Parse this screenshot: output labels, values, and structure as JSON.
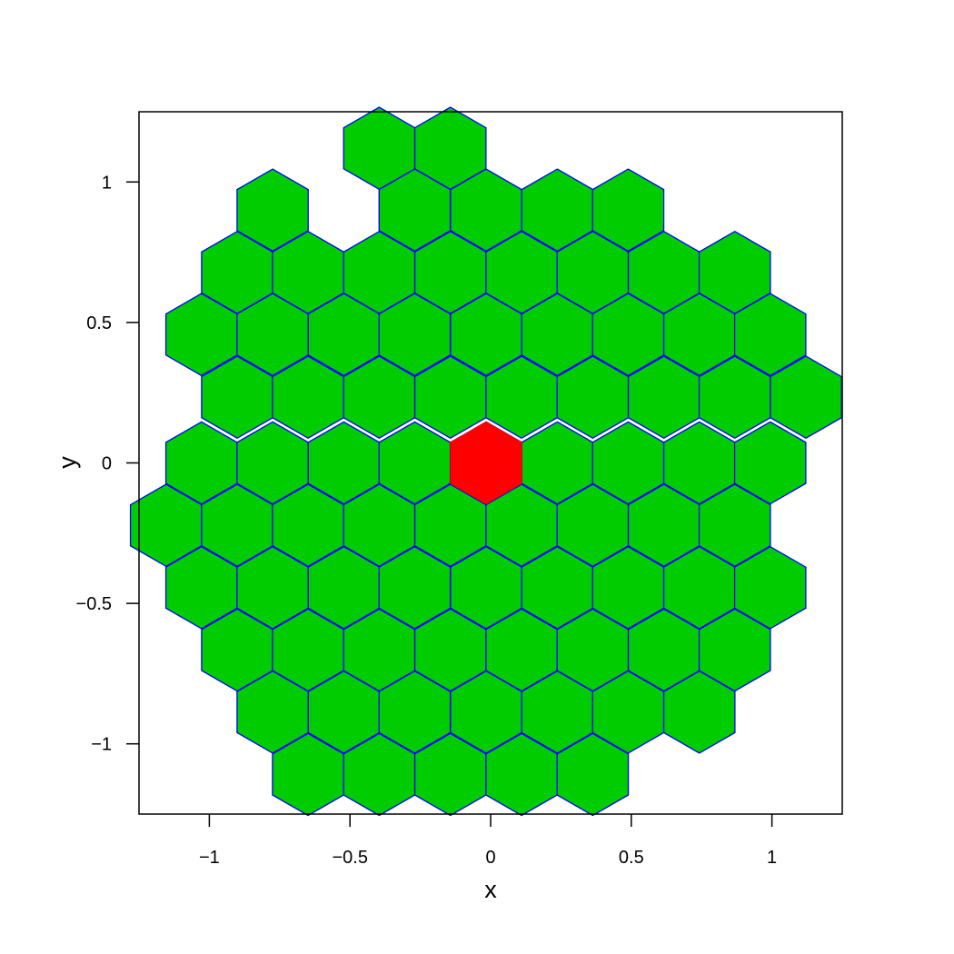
{
  "chart_data": {
    "type": "scatter",
    "title": "",
    "xlabel": "x",
    "ylabel": "y",
    "xlim": [
      -1.25,
      1.25
    ],
    "ylim": [
      -1.25,
      1.25
    ],
    "x_ticks": [
      -1,
      -0.5,
      0,
      0.5,
      1
    ],
    "x_tick_labels": [
      "−1",
      "−0.5",
      "0",
      "0.5",
      "1"
    ],
    "y_ticks": [
      -1,
      -0.5,
      0,
      0.5,
      1
    ],
    "y_tick_labels": [
      "−1",
      "−0.5",
      "0",
      "0.5",
      "1"
    ],
    "grid": false,
    "hex_fill": "#00cc00",
    "hex_border": "#0000ff",
    "highlight_fill": "#ff0000",
    "highlight_center": [
      -0.0162,
      0.0
    ],
    "series": [
      {
        "marker": "hexagon",
        "points": [
          [
            -0.396,
            1.12
          ],
          [
            -0.143,
            1.12
          ],
          [
            -0.775,
            0.9
          ],
          [
            -0.27,
            0.9
          ],
          [
            -0.016,
            0.9
          ],
          [
            0.237,
            0.9
          ],
          [
            0.489,
            0.9
          ],
          [
            -0.901,
            0.678
          ],
          [
            -0.649,
            0.678
          ],
          [
            -0.396,
            0.678
          ],
          [
            -0.143,
            0.678
          ],
          [
            0.11,
            0.678
          ],
          [
            0.363,
            0.678
          ],
          [
            0.616,
            0.678
          ],
          [
            0.868,
            0.678
          ],
          [
            -1.028,
            0.457
          ],
          [
            -0.775,
            0.457
          ],
          [
            -0.522,
            0.457
          ],
          [
            -0.27,
            0.457
          ],
          [
            -0.016,
            0.457
          ],
          [
            0.237,
            0.457
          ],
          [
            0.489,
            0.457
          ],
          [
            0.742,
            0.457
          ],
          [
            0.994,
            0.457
          ],
          [
            -0.901,
            0.234
          ],
          [
            -0.649,
            0.234
          ],
          [
            -0.396,
            0.234
          ],
          [
            -0.143,
            0.234
          ],
          [
            0.11,
            0.234
          ],
          [
            0.363,
            0.234
          ],
          [
            0.616,
            0.234
          ],
          [
            0.868,
            0.234
          ],
          [
            1.121,
            0.234
          ],
          [
            -1.028,
            0.0
          ],
          [
            -0.775,
            0.0
          ],
          [
            -0.522,
            0.0
          ],
          [
            -0.27,
            0.0
          ],
          [
            -0.016,
            0.0
          ],
          [
            0.237,
            0.0
          ],
          [
            0.489,
            0.0
          ],
          [
            0.742,
            0.0
          ],
          [
            0.994,
            0.0
          ],
          [
            -1.154,
            -0.222
          ],
          [
            -0.901,
            -0.222
          ],
          [
            -0.649,
            -0.222
          ],
          [
            -0.396,
            -0.222
          ],
          [
            -0.143,
            -0.222
          ],
          [
            0.11,
            -0.222
          ],
          [
            0.363,
            -0.222
          ],
          [
            0.616,
            -0.222
          ],
          [
            0.868,
            -0.222
          ],
          [
            -1.028,
            -0.444
          ],
          [
            -0.775,
            -0.444
          ],
          [
            -0.522,
            -0.444
          ],
          [
            -0.27,
            -0.444
          ],
          [
            -0.016,
            -0.444
          ],
          [
            0.237,
            -0.444
          ],
          [
            0.489,
            -0.444
          ],
          [
            0.742,
            -0.444
          ],
          [
            0.994,
            -0.444
          ],
          [
            -0.901,
            -0.666
          ],
          [
            -0.649,
            -0.666
          ],
          [
            -0.396,
            -0.666
          ],
          [
            -0.143,
            -0.666
          ],
          [
            0.11,
            -0.666
          ],
          [
            0.363,
            -0.666
          ],
          [
            0.616,
            -0.666
          ],
          [
            0.868,
            -0.666
          ],
          [
            -0.775,
            -0.887
          ],
          [
            -0.522,
            -0.887
          ],
          [
            -0.27,
            -0.887
          ],
          [
            -0.016,
            -0.887
          ],
          [
            0.237,
            -0.887
          ],
          [
            0.489,
            -0.887
          ],
          [
            0.742,
            -0.887
          ],
          [
            -0.649,
            -1.109
          ],
          [
            -0.396,
            -1.109
          ],
          [
            -0.143,
            -1.109
          ],
          [
            0.11,
            -1.109
          ],
          [
            0.363,
            -1.109
          ]
        ]
      }
    ]
  }
}
